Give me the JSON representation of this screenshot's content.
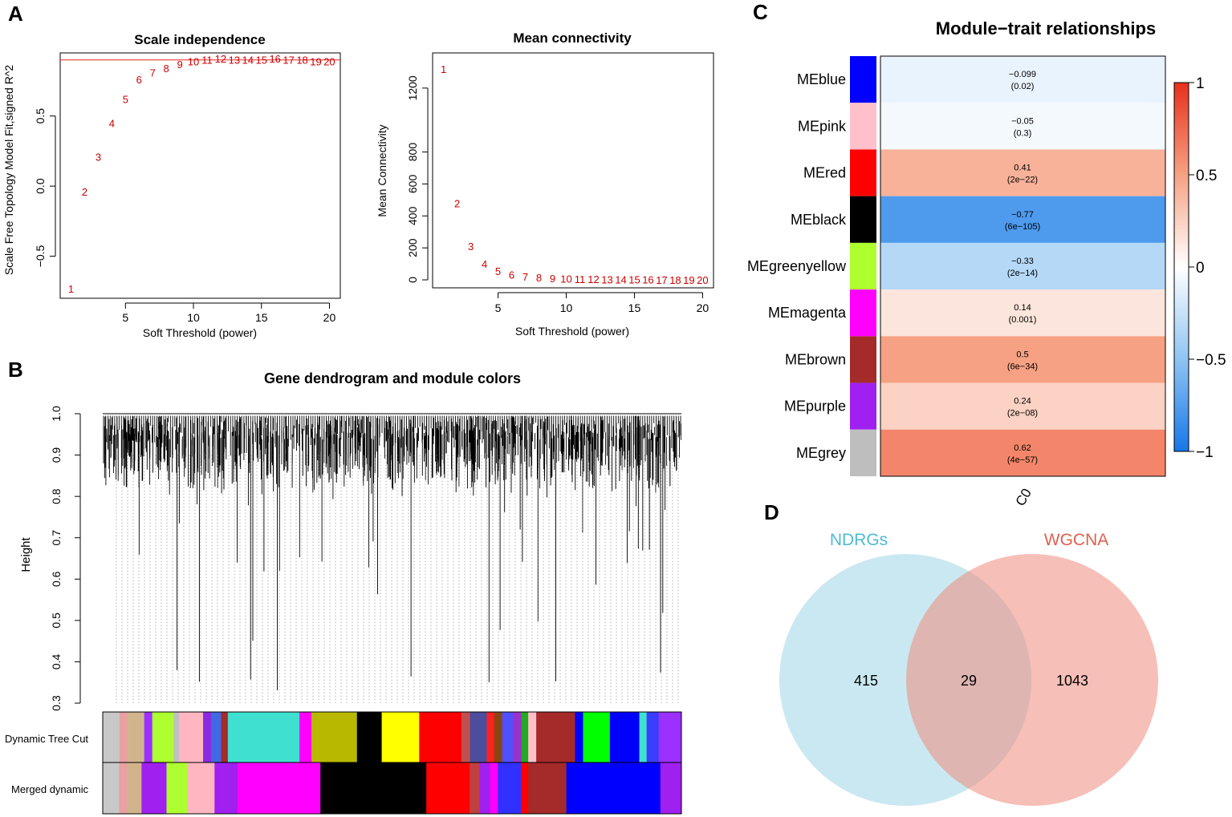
{
  "panel_labels": {
    "a": "A",
    "b": "B",
    "c": "C",
    "d": "D"
  },
  "colors": {
    "red_text": "#cc0000",
    "cut_line": "#e8413c",
    "ndrgs": "#62c2dc",
    "wgcna": "#ec6b56"
  },
  "chart_data": [
    {
      "id": "scale_independence",
      "type": "scatter",
      "title": "Scale independence",
      "xlabel": "Soft Threshold (power)",
      "ylabel": "Scale Free Topology Model Fit,signed R^2",
      "xlim": [
        0.2,
        20.8
      ],
      "ylim": [
        -0.8,
        0.95
      ],
      "xticks": [
        5,
        10,
        15,
        20
      ],
      "yticks": [
        -0.5,
        0.0,
        0.5
      ],
      "ytick_labels": [
        "−0.5",
        "0.0",
        "0.5"
      ],
      "cutoff_line": 0.9,
      "x": [
        1,
        2,
        3,
        4,
        5,
        6,
        7,
        8,
        9,
        10,
        11,
        12,
        13,
        14,
        15,
        16,
        17,
        18,
        19,
        20
      ],
      "y": [
        -0.73,
        -0.04,
        0.21,
        0.45,
        0.62,
        0.76,
        0.81,
        0.84,
        0.87,
        0.89,
        0.9,
        0.91,
        0.9,
        0.9,
        0.9,
        0.91,
        0.9,
        0.9,
        0.89,
        0.89
      ],
      "point_labels": [
        "1",
        "2",
        "3",
        "4",
        "5",
        "6",
        "7",
        "8",
        "9",
        "10",
        "11",
        "12",
        "13",
        "14",
        "15",
        "16",
        "17",
        "18",
        "19",
        "20"
      ]
    },
    {
      "id": "mean_connectivity",
      "type": "scatter",
      "title": "Mean connectivity",
      "xlabel": "Soft Threshold (power)",
      "ylabel": "Mean Connectivity",
      "xlim": [
        0.2,
        20.8
      ],
      "ylim": [
        -50,
        1420
      ],
      "xticks": [
        5,
        10,
        15,
        20
      ],
      "yticks": [
        0,
        200,
        400,
        600,
        800,
        1200
      ],
      "x": [
        1,
        2,
        3,
        4,
        5,
        6,
        7,
        8,
        9,
        10,
        11,
        12,
        13,
        14,
        15,
        16,
        17,
        18,
        19,
        20
      ],
      "y": [
        1320,
        480,
        210,
        100,
        55,
        32,
        20,
        14,
        10,
        7,
        5,
        4,
        3,
        2.5,
        2,
        1.5,
        1.2,
        1,
        0.8,
        0.6
      ],
      "point_labels": [
        "1",
        "2",
        "3",
        "4",
        "5",
        "6",
        "7",
        "8",
        "9",
        "10",
        "11",
        "12",
        "13",
        "14",
        "15",
        "16",
        "17",
        "18",
        "19",
        "20"
      ]
    },
    {
      "id": "dendrogram",
      "type": "dendrogram",
      "title": "Gene dendrogram and module colors",
      "ylabel": "Height",
      "ylim": [
        0.3,
        1.0
      ],
      "yticks": [
        0.3,
        0.4,
        0.5,
        0.6,
        0.7,
        0.8,
        0.9,
        1.0
      ],
      "ytick_labels": [
        "0.3",
        "0.4",
        "0.5",
        "0.6",
        "0.7",
        "0.8",
        "0.9",
        "1.0"
      ],
      "color_rows": [
        {
          "name": "Dynamic Tree Cut",
          "segments": [
            {
              "color": "#c8c8c8",
              "w": 2.5
            },
            {
              "color": "#e8a0a0",
              "w": 1.2
            },
            {
              "color": "#d2b48c",
              "w": 2.5
            },
            {
              "color": "#9b30ff",
              "w": 1.2
            },
            {
              "color": "#adff2f",
              "w": 3.2
            },
            {
              "color": "#c0c0c0",
              "w": 0.8
            },
            {
              "color": "#ffb6c1",
              "w": 3.6
            },
            {
              "color": "#8a2be2",
              "w": 1.2
            },
            {
              "color": "#4169e1",
              "w": 1.5
            },
            {
              "color": "#a52a2a",
              "w": 1.0
            },
            {
              "color": "#40e0d0",
              "w": 10.7
            },
            {
              "color": "#ff00ff",
              "w": 1.8
            },
            {
              "color": "#b8b800",
              "w": 6.8
            },
            {
              "color": "#000000",
              "w": 3.7
            },
            {
              "color": "#ffff00",
              "w": 5.6
            },
            {
              "color": "#ff0000",
              "w": 6.3
            },
            {
              "color": "#c05050",
              "w": 1.3
            },
            {
              "color": "#4d4d9e",
              "w": 2.5
            },
            {
              "color": "#ff2020",
              "w": 1.1
            },
            {
              "color": "#8b4513",
              "w": 1.2
            },
            {
              "color": "#5050ff",
              "w": 1.6
            },
            {
              "color": "#9932cc",
              "w": 1.3
            },
            {
              "color": "#22aa22",
              "w": 1.0
            },
            {
              "color": "#ffc0cb",
              "w": 1.2
            },
            {
              "color": "#a52a2a",
              "w": 5.8
            },
            {
              "color": "#0000ff",
              "w": 1.2
            },
            {
              "color": "#00ff00",
              "w": 4.0
            },
            {
              "color": "#0000ff",
              "w": 4.4
            },
            {
              "color": "#40e0d0",
              "w": 1.1
            },
            {
              "color": "#3d3dff",
              "w": 1.8
            },
            {
              "color": "#9b30ff",
              "w": 3.4
            }
          ]
        },
        {
          "name": "Merged dynamic",
          "segments": [
            {
              "color": "#c8c8c8",
              "w": 2.5
            },
            {
              "color": "#e8a0a0",
              "w": 1.2
            },
            {
              "color": "#d2b48c",
              "w": 2.2
            },
            {
              "color": "#a020f0",
              "w": 3.8
            },
            {
              "color": "#adff2f",
              "w": 3.2
            },
            {
              "color": "#ffb6c1",
              "w": 4.1
            },
            {
              "color": "#a020f0",
              "w": 3.5
            },
            {
              "color": "#ff00ff",
              "w": 12.6
            },
            {
              "color": "#000000",
              "w": 16.1
            },
            {
              "color": "#ff0000",
              "w": 6.6
            },
            {
              "color": "#c04040",
              "w": 1.5
            },
            {
              "color": "#a020f0",
              "w": 1.6
            },
            {
              "color": "#ff00ff",
              "w": 1.2
            },
            {
              "color": "#3030ff",
              "w": 3.5
            },
            {
              "color": "#ff0000",
              "w": 1.1
            },
            {
              "color": "#a52a2a",
              "w": 5.8
            },
            {
              "color": "#0000ff",
              "w": 14.3
            },
            {
              "color": "#a020f0",
              "w": 3.2
            }
          ]
        }
      ]
    },
    {
      "id": "module_trait",
      "type": "heatmap",
      "title": "Module−trait relationships",
      "xlabel": "C0",
      "colorbar_ticks": [
        1,
        0.5,
        0,
        -0.5,
        -1
      ],
      "colorbar_tick_labels": [
        "1",
        "0.5",
        "0",
        "−0.5",
        "−1"
      ],
      "rows": [
        {
          "module": "MEblue",
          "swatch": "#0000ff",
          "value": -0.099,
          "value_label": "−0.099",
          "p_label": "(0.02)"
        },
        {
          "module": "MEpink",
          "swatch": "#ffc0cb",
          "value": -0.05,
          "value_label": "−0.05",
          "p_label": "(0.3)"
        },
        {
          "module": "MEred",
          "swatch": "#ff0000",
          "value": 0.41,
          "value_label": "0.41",
          "p_label": "(2e−22)"
        },
        {
          "module": "MEblack",
          "swatch": "#000000",
          "value": -0.77,
          "value_label": "−0.77",
          "p_label": "(6e−105)"
        },
        {
          "module": "MEgreenyellow",
          "swatch": "#adff2f",
          "value": -0.33,
          "value_label": "−0.33",
          "p_label": "(2e−14)"
        },
        {
          "module": "MEmagenta",
          "swatch": "#ff00ff",
          "value": 0.14,
          "value_label": "0.14",
          "p_label": "(0.001)"
        },
        {
          "module": "MEbrown",
          "swatch": "#a52a2a",
          "value": 0.5,
          "value_label": "0.5",
          "p_label": "(6e−34)"
        },
        {
          "module": "MEpurple",
          "swatch": "#a020f0",
          "value": 0.24,
          "value_label": "0.24",
          "p_label": "(2e−08)"
        },
        {
          "module": "MEgrey",
          "swatch": "#bebebe",
          "value": 0.62,
          "value_label": "0.62",
          "p_label": "(4e−57)"
        }
      ]
    },
    {
      "id": "venn",
      "type": "venn",
      "sets": [
        {
          "name": "NDRGs",
          "only": 415
        },
        {
          "name": "WGCNA",
          "only": 1043
        }
      ],
      "intersection": 29
    }
  ]
}
